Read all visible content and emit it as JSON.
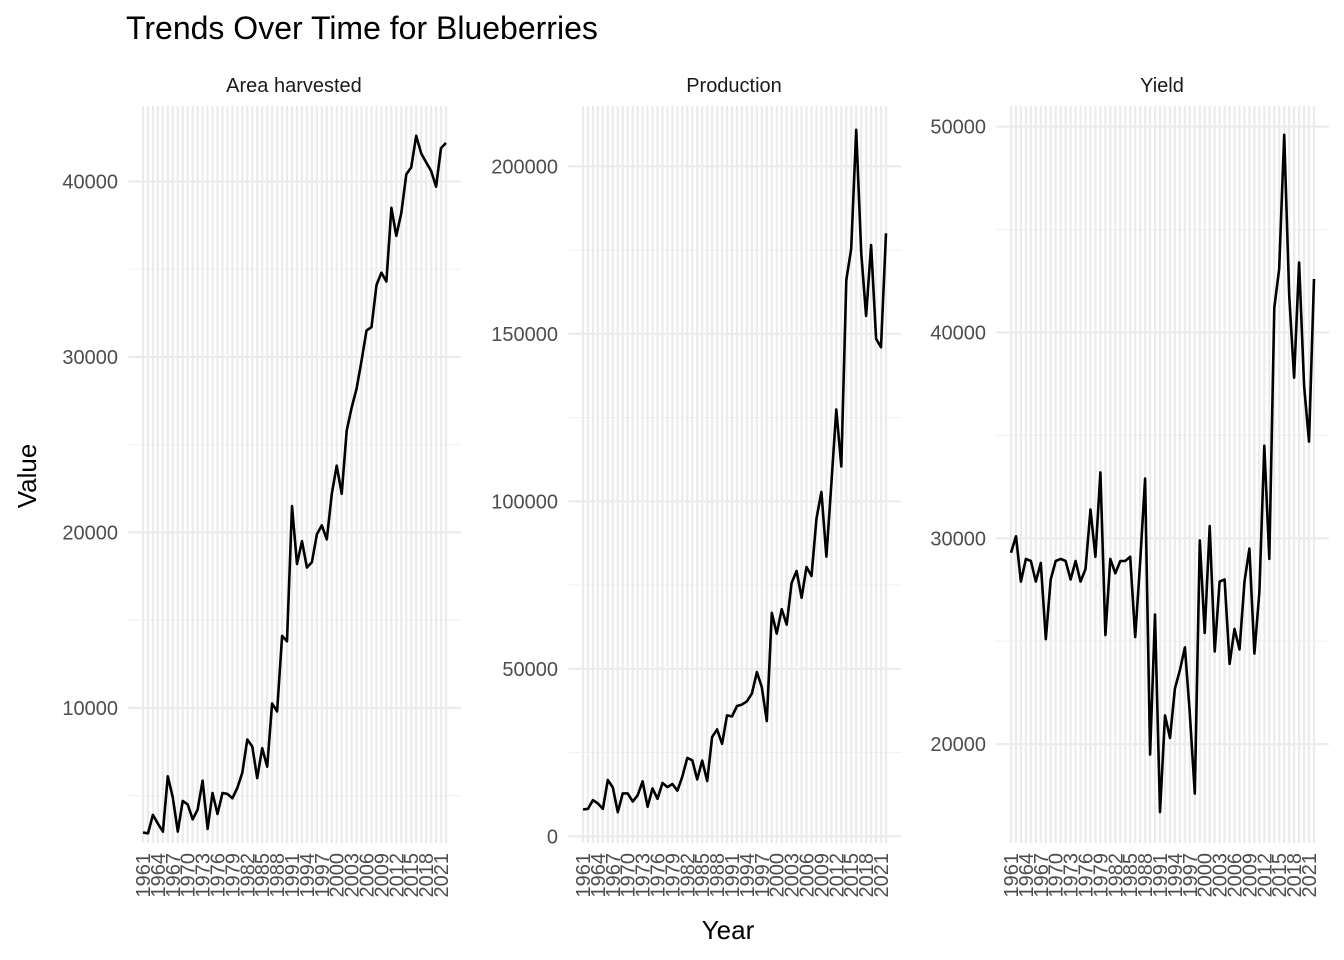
{
  "chart_data": {
    "type": "line",
    "title": "Trends Over Time for Blueberries",
    "xlabel": "Year",
    "ylabel": "Value",
    "x_tick_labels": [
      "1961",
      "1964",
      "1967",
      "1970",
      "1973",
      "1976",
      "1979",
      "1982",
      "1985",
      "1988",
      "1991",
      "1994",
      "1997",
      "2000",
      "2003",
      "2006",
      "2009",
      "2012",
      "2015",
      "2018",
      "2021"
    ],
    "years": [
      1961,
      1962,
      1963,
      1964,
      1965,
      1966,
      1967,
      1968,
      1969,
      1970,
      1971,
      1972,
      1973,
      1974,
      1975,
      1976,
      1977,
      1978,
      1979,
      1980,
      1981,
      1982,
      1983,
      1984,
      1985,
      1986,
      1987,
      1988,
      1989,
      1990,
      1991,
      1992,
      1993,
      1994,
      1995,
      1996,
      1997,
      1998,
      1999,
      2000,
      2001,
      2002,
      2003,
      2004,
      2005,
      2006,
      2007,
      2008,
      2009,
      2010,
      2011,
      2012,
      2013,
      2014,
      2015,
      2016,
      2017,
      2018,
      2019,
      2020,
      2021,
      2022
    ],
    "panels": [
      {
        "name": "Area harvested",
        "ylim": [
          2300,
          44300
        ],
        "y_ticks": [
          10000,
          20000,
          30000,
          40000
        ],
        "y_tick_labels": [
          "10000",
          "20000",
          "30000",
          "40000"
        ],
        "values": [
          2900,
          2850,
          3900,
          3400,
          2950,
          6100,
          4900,
          2950,
          4700,
          4500,
          3650,
          4200,
          5850,
          3100,
          5150,
          3950,
          5150,
          5100,
          4850,
          5450,
          6300,
          8200,
          7800,
          6000,
          7700,
          6650,
          10250,
          9800,
          14100,
          13800,
          21500,
          18200,
          19500,
          18000,
          18300,
          19900,
          20400,
          19600,
          22200,
          23800,
          22200,
          25800,
          27100,
          28200,
          29800,
          31500,
          31700,
          34100,
          34800,
          34300,
          38500,
          36900,
          38200,
          40400,
          40800,
          42600,
          41600,
          41100,
          40600,
          39700,
          41900,
          42200
        ]
      },
      {
        "name": "Production",
        "ylim": [
          -2000,
          218000
        ],
        "y_ticks": [
          0,
          50000,
          100000,
          150000,
          200000
        ],
        "y_tick_labels": [
          "0",
          "50000",
          "100000",
          "150000",
          "200000"
        ],
        "values": [
          8000,
          8200,
          10800,
          9800,
          8200,
          16800,
          14600,
          7200,
          12800,
          12800,
          10400,
          12200,
          16400,
          8800,
          14300,
          11200,
          15900,
          14700,
          15600,
          13600,
          17800,
          23400,
          22700,
          17000,
          22600,
          16500,
          29600,
          31900,
          27600,
          36100,
          35800,
          38900,
          39300,
          40300,
          42600,
          49000,
          44500,
          34400,
          66700,
          60500,
          67800,
          63200,
          75600,
          79200,
          71200,
          80400,
          77700,
          94900,
          102800,
          83500,
          105400,
          127400,
          110400,
          166000,
          175400,
          210900,
          174300,
          155300,
          176500,
          148500,
          146000,
          180000
        ]
      },
      {
        "name": "Yield",
        "ylim": [
          15200,
          51000
        ],
        "y_ticks": [
          20000,
          30000,
          40000,
          50000
        ],
        "y_tick_labels": [
          "20000",
          "30000",
          "40000",
          "50000"
        ],
        "values": [
          29300,
          30100,
          27900,
          29000,
          28900,
          27900,
          28800,
          25100,
          28000,
          28900,
          29000,
          28900,
          28000,
          28900,
          27900,
          28500,
          31400,
          29100,
          33200,
          25300,
          29000,
          28300,
          28900,
          28900,
          29100,
          25200,
          28800,
          32900,
          19500,
          26300,
          16700,
          21400,
          20300,
          22700,
          23600,
          24700,
          21500,
          17600,
          29900,
          25400,
          30600,
          24500,
          27900,
          28000,
          23900,
          25600,
          24600,
          27900,
          29500,
          24400,
          27400,
          34500,
          29000,
          41200,
          43100,
          49600,
          41800,
          37800,
          43400,
          37400,
          34700,
          42600
        ]
      }
    ]
  }
}
